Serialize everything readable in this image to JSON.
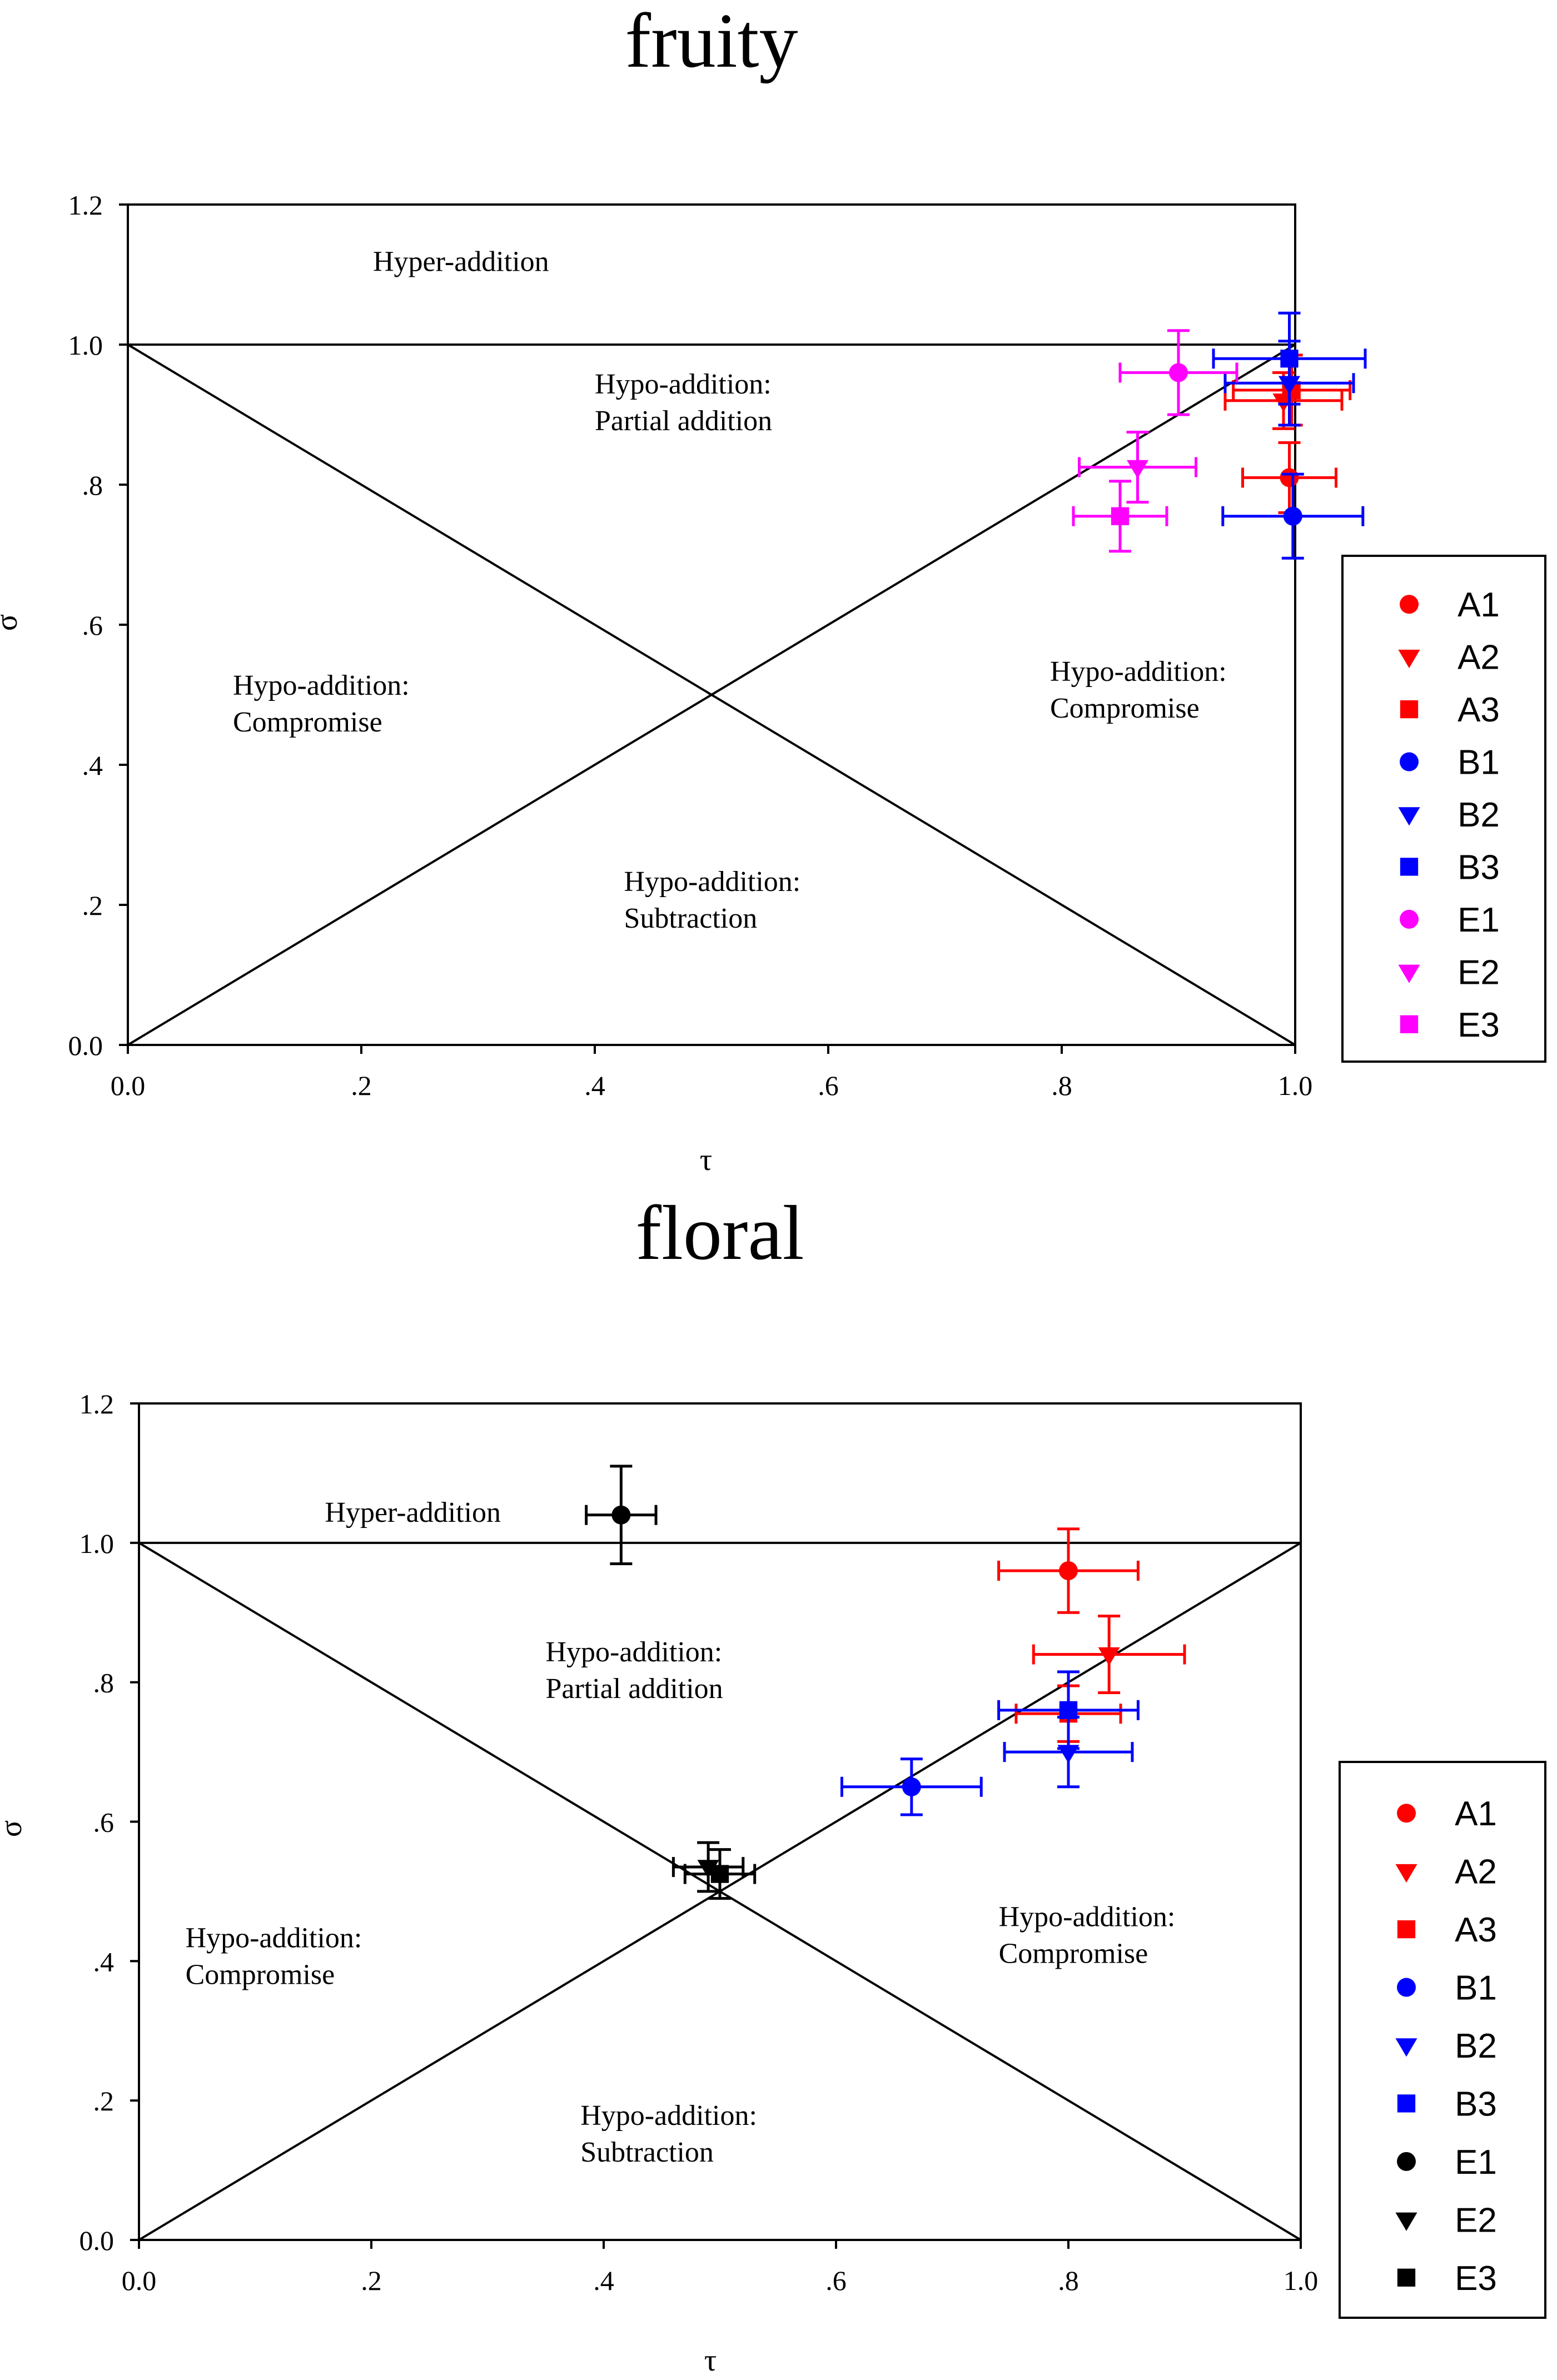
{
  "colors": {
    "red": "#ff0000",
    "blue": "#0000ff",
    "magenta": "#ff00ff",
    "black": "#000000"
  },
  "chart_data": [
    {
      "type": "scatter",
      "title": "fruity",
      "xlabel": "τ",
      "ylabel": "σ",
      "xlim": [
        0,
        1
      ],
      "ylim": [
        0,
        1.2
      ],
      "xticks": [
        0,
        0.2,
        0.4,
        0.6,
        0.8,
        1.0
      ],
      "xtick_labels": [
        "0.0",
        ".2",
        ".4",
        ".6",
        ".8",
        "1.0"
      ],
      "yticks": [
        0,
        0.2,
        0.4,
        0.6,
        0.8,
        1.0,
        1.2
      ],
      "ytick_labels": [
        "0.0",
        ".2",
        ".4",
        ".6",
        ".8",
        "1.0",
        "1.2"
      ],
      "grid": false,
      "legend_position": "right",
      "region_labels": [
        {
          "lines": [
            "Hyper-addition"
          ],
          "x": 0.21,
          "y": 1.105
        },
        {
          "lines": [
            "Hypo-addition:",
            "Partial addition"
          ],
          "x": 0.4,
          "y": 0.93
        },
        {
          "lines": [
            "Hypo-addition:",
            "Compromise"
          ],
          "x": 0.09,
          "y": 0.5
        },
        {
          "lines": [
            "Hypo-addition:",
            "Compromise"
          ],
          "x": 0.79,
          "y": 0.52
        },
        {
          "lines": [
            "Hypo-addition:",
            "Subtraction"
          ],
          "x": 0.425,
          "y": 0.22
        }
      ],
      "series": [
        {
          "name": "A1",
          "color": "#ff0000",
          "marker": "circle",
          "x": 0.995,
          "y": 0.81,
          "xerr": 0.04,
          "yerr": 0.05
        },
        {
          "name": "A2",
          "color": "#ff0000",
          "marker": "triangle",
          "x": 0.99,
          "y": 0.92,
          "xerr": 0.05,
          "yerr": 0.04
        },
        {
          "name": "A3",
          "color": "#ff0000",
          "marker": "square",
          "x": 0.997,
          "y": 0.935,
          "xerr": 0.05,
          "yerr": 0.05
        },
        {
          "name": "B1",
          "color": "#0000ff",
          "marker": "circle",
          "x": 0.998,
          "y": 0.755,
          "xerr": 0.06,
          "yerr": 0.06
        },
        {
          "name": "B2",
          "color": "#0000ff",
          "marker": "triangle",
          "x": 0.995,
          "y": 0.945,
          "xerr": 0.055,
          "yerr": 0.06
        },
        {
          "name": "B3",
          "color": "#0000ff",
          "marker": "square",
          "x": 0.995,
          "y": 0.98,
          "xerr": 0.065,
          "yerr": 0.065
        },
        {
          "name": "E1",
          "color": "#ff00ff",
          "marker": "circle",
          "x": 0.9,
          "y": 0.96,
          "xerr": 0.05,
          "yerr": 0.06
        },
        {
          "name": "E2",
          "color": "#ff00ff",
          "marker": "triangle",
          "x": 0.865,
          "y": 0.825,
          "xerr": 0.05,
          "yerr": 0.05
        },
        {
          "name": "E3",
          "color": "#ff00ff",
          "marker": "square",
          "x": 0.85,
          "y": 0.755,
          "xerr": 0.04,
          "yerr": 0.05
        }
      ]
    },
    {
      "type": "scatter",
      "title": "floral",
      "xlabel": "τ",
      "ylabel": "σ",
      "xlim": [
        0,
        1
      ],
      "ylim": [
        0,
        1.2
      ],
      "xticks": [
        0,
        0.2,
        0.4,
        0.6,
        0.8,
        1.0
      ],
      "xtick_labels": [
        "0.0",
        ".2",
        ".4",
        ".6",
        ".8",
        "1.0"
      ],
      "yticks": [
        0,
        0.2,
        0.4,
        0.6,
        0.8,
        1.0,
        1.2
      ],
      "ytick_labels": [
        "0.0",
        ".2",
        ".4",
        ".6",
        ".8",
        "1.0",
        "1.2"
      ],
      "grid": false,
      "legend_position": "right",
      "region_labels": [
        {
          "lines": [
            "Hyper-addition"
          ],
          "x": 0.16,
          "y": 1.03
        },
        {
          "lines": [
            "Hypo-addition:",
            "Partial addition"
          ],
          "x": 0.35,
          "y": 0.83
        },
        {
          "lines": [
            "Hypo-addition:",
            "Compromise"
          ],
          "x": 0.04,
          "y": 0.42
        },
        {
          "lines": [
            "Hypo-addition:",
            "Compromise"
          ],
          "x": 0.74,
          "y": 0.45
        },
        {
          "lines": [
            "Hypo-addition:",
            "Subtraction"
          ],
          "x": 0.38,
          "y": 0.165
        }
      ],
      "series": [
        {
          "name": "A1",
          "color": "#ff0000",
          "marker": "circle",
          "x": 0.8,
          "y": 0.96,
          "xerr": 0.06,
          "yerr": 0.06
        },
        {
          "name": "A2",
          "color": "#ff0000",
          "marker": "triangle",
          "x": 0.835,
          "y": 0.84,
          "xerr": 0.065,
          "yerr": 0.055
        },
        {
          "name": "A3",
          "color": "#ff0000",
          "marker": "square",
          "x": 0.8,
          "y": 0.755,
          "xerr": 0.045,
          "yerr": 0.04
        },
        {
          "name": "B1",
          "color": "#0000ff",
          "marker": "circle",
          "x": 0.665,
          "y": 0.65,
          "xerr": 0.06,
          "yerr": 0.04
        },
        {
          "name": "B2",
          "color": "#0000ff",
          "marker": "triangle",
          "x": 0.8,
          "y": 0.7,
          "xerr": 0.055,
          "yerr": 0.05
        },
        {
          "name": "B3",
          "color": "#0000ff",
          "marker": "square",
          "x": 0.8,
          "y": 0.76,
          "xerr": 0.06,
          "yerr": 0.055
        },
        {
          "name": "E1",
          "color": "#000000",
          "marker": "circle",
          "x": 0.415,
          "y": 1.04,
          "xerr": 0.03,
          "yerr": 0.07
        },
        {
          "name": "E2",
          "color": "#000000",
          "marker": "triangle",
          "x": 0.49,
          "y": 0.535,
          "xerr": 0.03,
          "yerr": 0.035
        },
        {
          "name": "E3",
          "color": "#000000",
          "marker": "square",
          "x": 0.5,
          "y": 0.525,
          "xerr": 0.03,
          "yerr": 0.035
        }
      ]
    }
  ]
}
